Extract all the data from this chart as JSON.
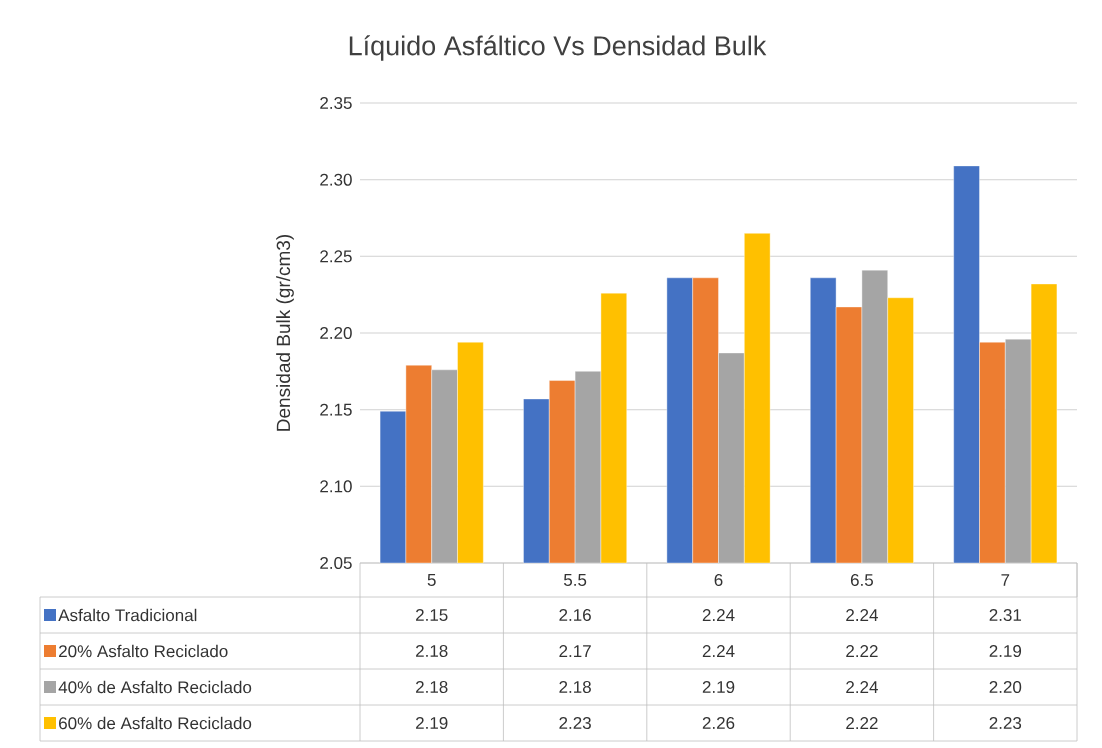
{
  "chart_data": {
    "type": "bar",
    "title": "Líquido Asfáltico Vs Densidad Bulk",
    "ylabel": "Densidad Bulk  (gr/cm3)",
    "categories": [
      "5",
      "5.5",
      "6",
      "6.5",
      "7"
    ],
    "ylim": [
      2.05,
      2.35
    ],
    "yticks": [
      {
        "value": 2.05,
        "label": "2.05"
      },
      {
        "value": 2.1,
        "label": "2.10"
      },
      {
        "value": 2.15,
        "label": "2.15"
      },
      {
        "value": 2.2,
        "label": "2.20"
      },
      {
        "value": 2.25,
        "label": "2.25"
      },
      {
        "value": 2.3,
        "label": "2.30"
      },
      {
        "value": 2.35,
        "label": "2.35"
      }
    ],
    "grid": "y",
    "legend": "bottom",
    "series": [
      {
        "name": "Asfalto Tradicional",
        "color": "#4472c4",
        "values": [
          2.149,
          2.157,
          2.236,
          2.236,
          2.309
        ],
        "value_labels": [
          "2.15",
          "2.16",
          "2.24",
          "2.24",
          "2.31"
        ]
      },
      {
        "name": "20% Asfalto Reciclado",
        "color": "#ed7d31",
        "values": [
          2.179,
          2.169,
          2.236,
          2.217,
          2.194
        ],
        "value_labels": [
          "2.18",
          "2.17",
          "2.24",
          "2.22",
          "2.19"
        ]
      },
      {
        "name": "40% de Asfalto Reciclado",
        "color": "#a5a5a5",
        "values": [
          2.176,
          2.175,
          2.187,
          2.241,
          2.196
        ],
        "value_labels": [
          "2.18",
          "2.18",
          "2.19",
          "2.24",
          "2.20"
        ]
      },
      {
        "name": "60% de Asfalto Reciclado",
        "color": "#ffc000",
        "values": [
          2.194,
          2.226,
          2.265,
          2.223,
          2.232
        ],
        "value_labels": [
          "2.19",
          "2.23",
          "2.26",
          "2.22",
          "2.23"
        ]
      }
    ]
  }
}
